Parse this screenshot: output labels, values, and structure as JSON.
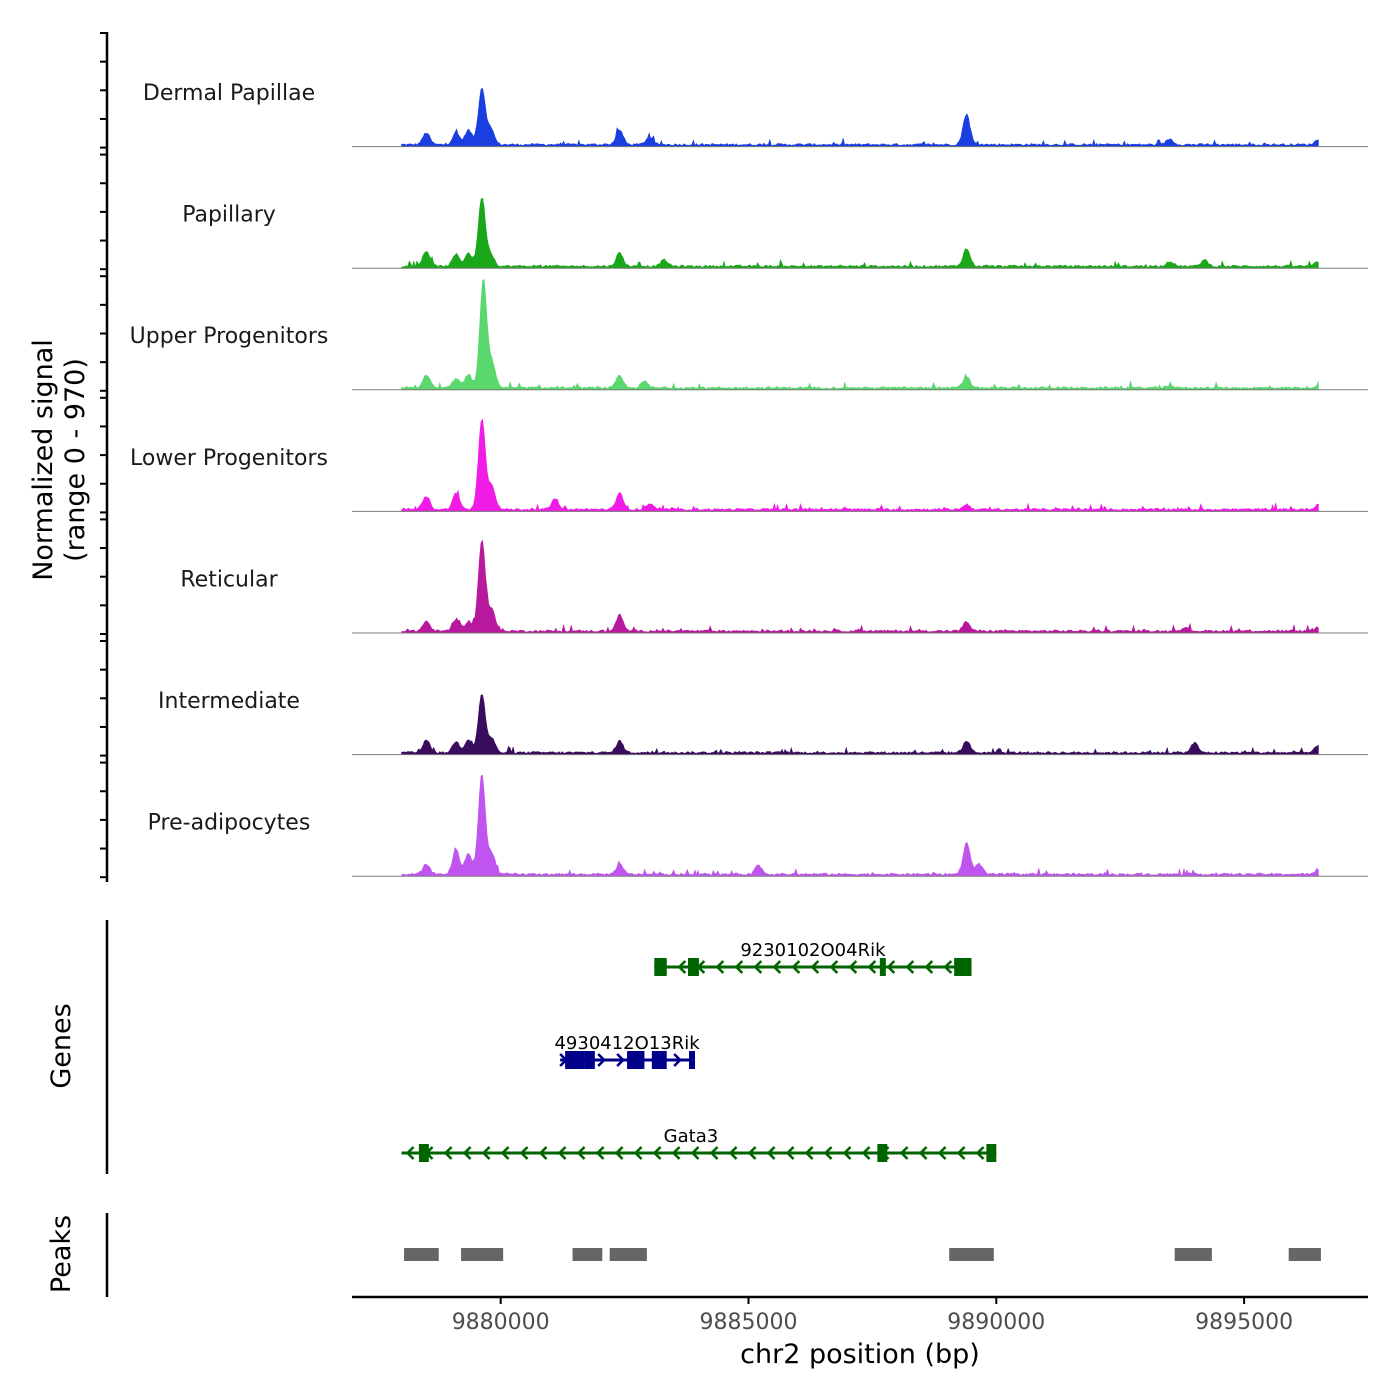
{
  "chart_data": {
    "type": "area",
    "title": "",
    "ylabel_line1": "Normalized signal",
    "ylabel_line2": "(range 0 - 970)",
    "xlabel": "chr2 position (bp)",
    "genes_label": "Genes",
    "peaks_label": "Peaks",
    "xlim": [
      9877000,
      9897500
    ],
    "signal_range": [
      9878000,
      9896500
    ],
    "ylim": [
      0,
      970
    ],
    "x_ticks": [
      9880000,
      9885000,
      9890000,
      9895000
    ],
    "x_tick_labels": [
      "9880000",
      "9885000",
      "9890000",
      "9895000"
    ],
    "tracks": [
      {
        "name": "Dermal Papillae",
        "color": "#1a3ee0",
        "peaks": [
          [
            9878500,
            0.17
          ],
          [
            9879100,
            0.17
          ],
          [
            9879350,
            0.21
          ],
          [
            9879620,
            0.81
          ],
          [
            9879800,
            0.22
          ],
          [
            9882400,
            0.21
          ],
          [
            9883000,
            0.11
          ],
          [
            9889400,
            0.44
          ],
          [
            9893500,
            0.08
          ],
          [
            9896500,
            0.07
          ]
        ]
      },
      {
        "name": "Papillary",
        "color": "#1aa81a",
        "peaks": [
          [
            9878500,
            0.22
          ],
          [
            9879100,
            0.17
          ],
          [
            9879350,
            0.19
          ],
          [
            9879620,
            0.99
          ],
          [
            9879800,
            0.17
          ],
          [
            9882400,
            0.19
          ],
          [
            9883300,
            0.09
          ],
          [
            9889400,
            0.25
          ],
          [
            9893500,
            0.07
          ],
          [
            9894200,
            0.09
          ],
          [
            9896500,
            0.06
          ]
        ]
      },
      {
        "name": "Upper Progenitors",
        "color": "#5ad86e",
        "peaks": [
          [
            9878500,
            0.19
          ],
          [
            9879100,
            0.14
          ],
          [
            9879350,
            0.19
          ],
          [
            9879650,
            1.55
          ],
          [
            9879830,
            0.35
          ],
          [
            9882400,
            0.17
          ],
          [
            9882900,
            0.09
          ],
          [
            9889400,
            0.16
          ],
          [
            9893500,
            0.04
          ],
          [
            9896500,
            0.04
          ]
        ]
      },
      {
        "name": "Lower Progenitors",
        "color": "#f01ce6",
        "peaks": [
          [
            9878500,
            0.19
          ],
          [
            9879100,
            0.23
          ],
          [
            9879620,
            1.3
          ],
          [
            9879820,
            0.35
          ],
          [
            9881100,
            0.15
          ],
          [
            9882400,
            0.23
          ],
          [
            9883000,
            0.08
          ],
          [
            9889400,
            0.07
          ],
          [
            9896500,
            0.07
          ]
        ]
      },
      {
        "name": "Reticular",
        "color": "#b8189e",
        "peaks": [
          [
            9878500,
            0.14
          ],
          [
            9879100,
            0.17
          ],
          [
            9879350,
            0.14
          ],
          [
            9879620,
            1.3
          ],
          [
            9879820,
            0.3
          ],
          [
            9882400,
            0.23
          ],
          [
            9889400,
            0.13
          ],
          [
            9893800,
            0.05
          ],
          [
            9896500,
            0.05
          ]
        ]
      },
      {
        "name": "Intermediate",
        "color": "#3a0c5e",
        "peaks": [
          [
            9878500,
            0.19
          ],
          [
            9879100,
            0.16
          ],
          [
            9879350,
            0.19
          ],
          [
            9879620,
            0.84
          ],
          [
            9879820,
            0.2
          ],
          [
            9882400,
            0.17
          ],
          [
            9889400,
            0.17
          ],
          [
            9894000,
            0.14
          ],
          [
            9896500,
            0.1
          ]
        ]
      },
      {
        "name": "Pre-adipocytes",
        "color": "#bf55ee",
        "peaks": [
          [
            9878500,
            0.14
          ],
          [
            9879100,
            0.35
          ],
          [
            9879350,
            0.3
          ],
          [
            9879620,
            1.43
          ],
          [
            9879820,
            0.3
          ],
          [
            9882400,
            0.14
          ],
          [
            9885200,
            0.13
          ],
          [
            9889400,
            0.45
          ],
          [
            9889650,
            0.15
          ],
          [
            9896500,
            0.05
          ]
        ]
      }
    ],
    "genes": [
      {
        "name": "9230102O04Rik",
        "strand": "-",
        "color": "#006400",
        "start": 9883100,
        "end": 9889500,
        "exons": [
          [
            9883100,
            9883350
          ],
          [
            9883780,
            9884000
          ],
          [
            9887650,
            9887750
          ],
          [
            9889150,
            9889500
          ]
        ]
      },
      {
        "name": "4930412O13Rik",
        "strand": "+",
        "color": "#00008b",
        "start": 9881200,
        "end": 9883900,
        "exons": [
          [
            9881300,
            9881700
          ],
          [
            9881700,
            9881900
          ],
          [
            9882550,
            9882900
          ],
          [
            9883050,
            9883350
          ],
          [
            9883800,
            9883900
          ]
        ]
      },
      {
        "name": "Gata3",
        "strand": "-",
        "color": "#006400",
        "start": 9878000,
        "end": 9890000,
        "exons": [
          [
            9878350,
            9878550
          ],
          [
            9887600,
            9887800
          ],
          [
            9889800,
            9890000
          ]
        ]
      }
    ],
    "peak_regions": [
      [
        9878050,
        9878750
      ],
      [
        9879200,
        9880050
      ],
      [
        9881450,
        9882050
      ],
      [
        9882200,
        9882950
      ],
      [
        9889050,
        9889950
      ],
      [
        9893600,
        9894350
      ],
      [
        9895900,
        9896550
      ]
    ]
  }
}
